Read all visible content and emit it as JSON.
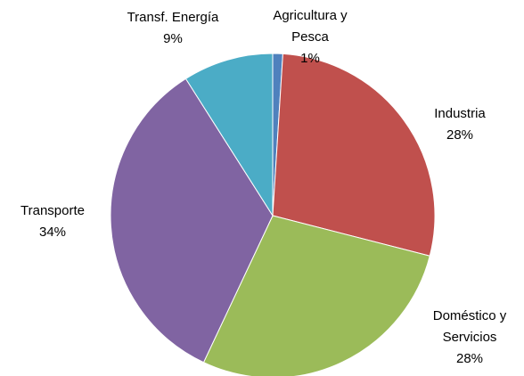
{
  "chart_data": {
    "type": "pie",
    "categories": [
      "Agricultura y Pesca",
      "Industria",
      "Doméstico y Servicios",
      "Transporte",
      "Transf. Energía"
    ],
    "values": [
      1,
      28,
      28,
      34,
      9
    ],
    "value_labels": [
      "1%",
      "28%",
      "28%",
      "34%",
      "9%"
    ],
    "colors": [
      "#4f81bd",
      "#c0504d",
      "#9bbb59",
      "#8064a2",
      "#4bacc6"
    ]
  }
}
